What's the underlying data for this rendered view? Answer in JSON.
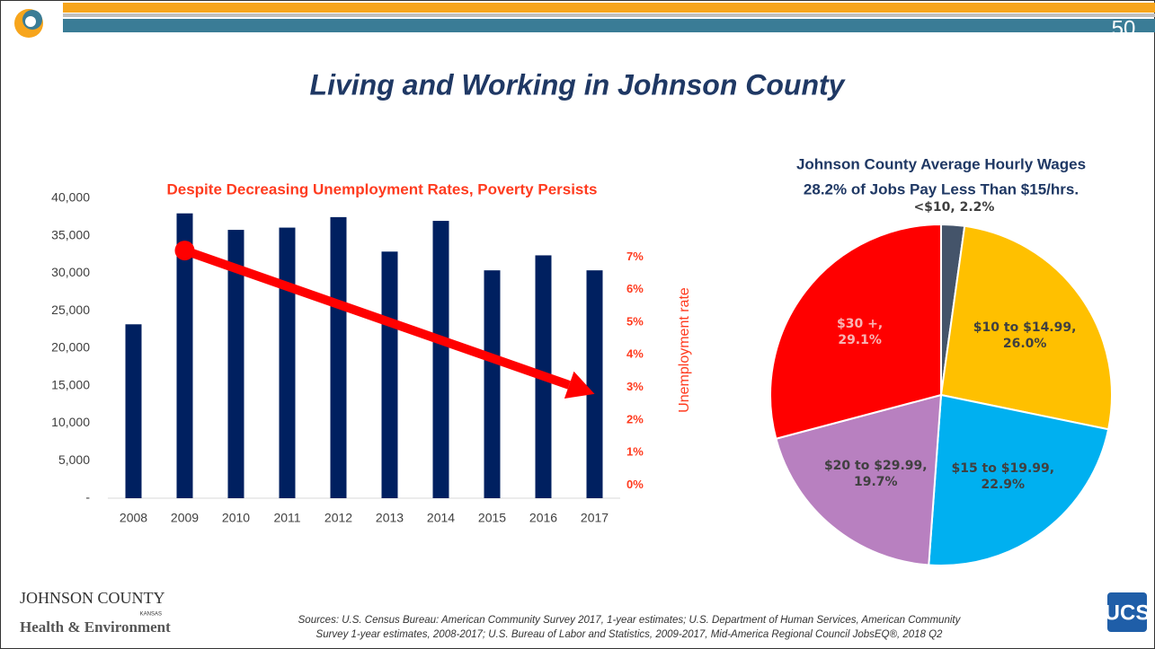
{
  "slide": {
    "page_number": "50",
    "title": "Living and Working in Johnson County",
    "logo_left": {
      "name": "JOHNSON COUNTY",
      "state": "KANSAS",
      "dept": "Health & Environment"
    },
    "logo_right": "UCS",
    "sources": [
      "Sources: U.S. Census Bureau:  American Community Survey 2017, 1-year estimates;  U.S. Department of Human Services, American Community",
      "Survey 1-year estimates, 2008-2017; U.S. Bureau of Labor and Statistics, 2009-2017, Mid-America Regional Council  JobsEQ®, 2018 Q2"
    ]
  },
  "chart_data": [
    {
      "type": "bar",
      "subtitle": "Despite Decreasing Unemployment Rates, Poverty Persists",
      "categories": [
        "2008",
        "2009",
        "2010",
        "2011",
        "2012",
        "2013",
        "2014",
        "2015",
        "2016",
        "2017"
      ],
      "values": [
        23200,
        38000,
        35800,
        36100,
        37500,
        32900,
        37000,
        30400,
        32400,
        30400
      ],
      "color": "#002060",
      "ylim": [
        0,
        40000
      ],
      "yticks": [
        {
          "value": 0,
          "label": "-"
        },
        {
          "value": 5000,
          "label": "5,000"
        },
        {
          "value": 10000,
          "label": "10,000"
        },
        {
          "value": 15000,
          "label": "15,000"
        },
        {
          "value": 20000,
          "label": "20,000"
        },
        {
          "value": 25000,
          "label": "25,000"
        },
        {
          "value": 30000,
          "label": "30,000"
        },
        {
          "value": 35000,
          "label": "35,000"
        },
        {
          "value": 40000,
          "label": "40,000"
        }
      ],
      "y2label": "Unemployment rate",
      "y2lim": [
        -0.4,
        8.8
      ],
      "y2ticks": [
        {
          "value": 0,
          "label": "0%"
        },
        {
          "value": 1,
          "label": "1%"
        },
        {
          "value": 2,
          "label": "2%"
        },
        {
          "value": 3,
          "label": "3%"
        },
        {
          "value": 4,
          "label": "4%"
        },
        {
          "value": 5,
          "label": "5%"
        },
        {
          "value": 6,
          "label": "6%"
        },
        {
          "value": 7,
          "label": "7%"
        }
      ],
      "trend": {
        "x": [
          "2009",
          "2017"
        ],
        "values": [
          7.2,
          2.8
        ],
        "axis": "y2",
        "color": "#ff0000"
      }
    },
    {
      "type": "pie",
      "title": [
        "Johnson County Average Hourly Wages",
        "28.2% of Jobs Pay Less Than $15/hrs."
      ],
      "categories": [
        "<$10",
        "$10 to $14.99",
        "$15 to $19.99",
        "$20 to $29.99",
        "$30 +"
      ],
      "values": [
        2.2,
        26.0,
        22.9,
        19.7,
        29.1
      ],
      "value_labels": [
        "2.2%",
        "26.0%",
        "22.9%",
        "19.7%",
        "29.1%"
      ],
      "colors": [
        "#44546a",
        "#ffc000",
        "#00b0f0",
        "#b880c0",
        "#ff0000"
      ]
    }
  ]
}
